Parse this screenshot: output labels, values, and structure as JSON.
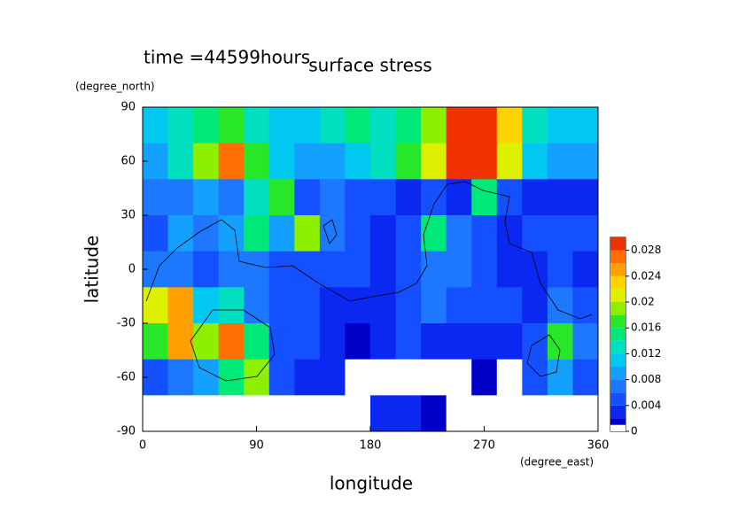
{
  "chart_data": {
    "type": "contour",
    "title": "surface stress",
    "subtitle": "time =44599hours",
    "x_label": "longitude",
    "x_unit": "(degree_east)",
    "y_label": "latitude",
    "y_unit": "(degree_north)",
    "xlim": [
      0,
      360
    ],
    "ylim": [
      -90,
      90
    ],
    "xticks": [
      0,
      90,
      180,
      270,
      360
    ],
    "yticks": [
      90,
      60,
      30,
      0,
      -30,
      -60,
      -90
    ],
    "x": [
      10,
      30,
      50,
      70,
      90,
      110,
      130,
      150,
      170,
      190,
      210,
      230,
      250,
      270,
      290,
      310,
      330,
      350
    ],
    "y": [
      80,
      60,
      40,
      20,
      0,
      -20,
      -40,
      -60,
      -80
    ],
    "z": [
      [
        0.01,
        0.012,
        0.014,
        0.016,
        0.012,
        0.01,
        0.01,
        0.012,
        0.014,
        0.012,
        0.014,
        0.018,
        0.03,
        0.03,
        0.022,
        0.012,
        0.01,
        0.01
      ],
      [
        0.008,
        0.012,
        0.018,
        0.026,
        0.016,
        0.01,
        0.008,
        0.008,
        0.01,
        0.012,
        0.016,
        0.02,
        0.028,
        0.03,
        0.02,
        0.01,
        0.008,
        0.008
      ],
      [
        0.006,
        0.006,
        0.008,
        0.006,
        0.012,
        0.016,
        0.004,
        0.006,
        0.005,
        0.004,
        0.003,
        0.004,
        0.003,
        0.014,
        0.004,
        0.002,
        0.003,
        0.002
      ],
      [
        0.004,
        0.008,
        0.006,
        0.008,
        0.014,
        0.008,
        0.018,
        0.006,
        0.004,
        0.003,
        0.004,
        0.014,
        0.006,
        0.004,
        0.003,
        0.004,
        0.004,
        0.004
      ],
      [
        0.006,
        0.006,
        0.004,
        0.006,
        0.006,
        0.004,
        0.004,
        0.004,
        0.004,
        0.003,
        0.004,
        0.006,
        0.006,
        0.004,
        0.003,
        0.002,
        0.004,
        0.003
      ],
      [
        0.02,
        0.024,
        0.01,
        0.012,
        0.006,
        0.004,
        0.004,
        0.003,
        0.002,
        0.003,
        0.004,
        0.006,
        0.004,
        0.004,
        0.004,
        0.003,
        0.006,
        0.004
      ],
      [
        0.016,
        0.024,
        0.018,
        0.026,
        0.014,
        0.005,
        0.004,
        0.002,
        0.001,
        0.002,
        0.004,
        0.003,
        0.002,
        0.003,
        0.003,
        0.004,
        0.016,
        0.006
      ],
      [
        0.004,
        0.006,
        0.008,
        0.014,
        0.018,
        0.004,
        0.002,
        0.003,
        0,
        0,
        0,
        0,
        0,
        0.001,
        0,
        0.004,
        0.008,
        0.004
      ],
      [
        0,
        0,
        0,
        0,
        0,
        0,
        0,
        0,
        0,
        0.002,
        0.003,
        0.001,
        0,
        0,
        0,
        0,
        0,
        0
      ]
    ],
    "levels": [
      0,
      0.001,
      0.002,
      0.004,
      0.006,
      0.008,
      0.01,
      0.012,
      0.014,
      0.016,
      0.018,
      0.02,
      0.022,
      0.024,
      0.026,
      0.028,
      0.03
    ],
    "colors": [
      "#ffffff",
      "#0000c8",
      "#0a28f0",
      "#1450ff",
      "#1e78ff",
      "#14a0ff",
      "#00c8f0",
      "#00e0c0",
      "#00e878",
      "#28e628",
      "#8cf000",
      "#dcf000",
      "#ffd200",
      "#ffa000",
      "#ff6e00",
      "#f03200"
    ],
    "colorbar_ticks": [
      0,
      0.004,
      0.008,
      0.012,
      0.016,
      0.02,
      0.024,
      0.028
    ]
  }
}
